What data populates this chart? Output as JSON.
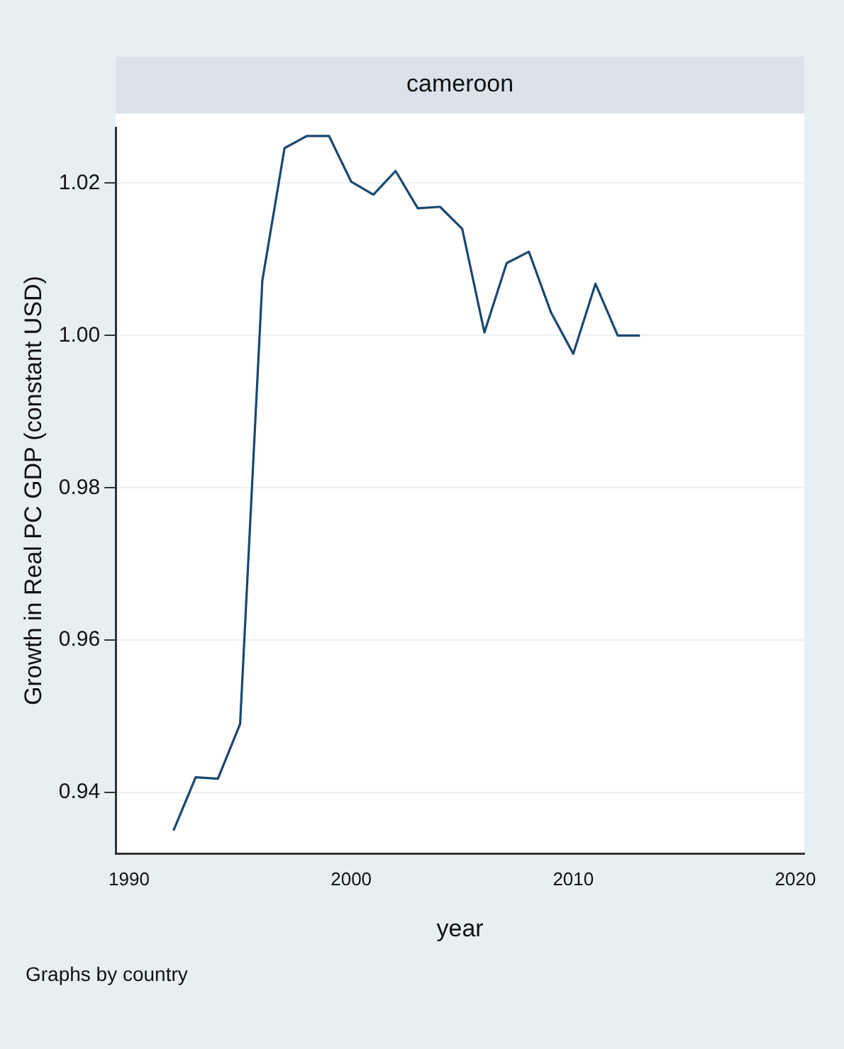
{
  "chart_data": {
    "type": "line",
    "title": "cameroon",
    "xlabel": "year",
    "ylabel": "Growth in Real PC GDP (constant USD)",
    "annotations": [
      "Graphs by country"
    ],
    "x": [
      1992,
      1993,
      1994,
      1995,
      1996,
      1997,
      1998,
      1999,
      2000,
      2001,
      2002,
      2003,
      2004,
      2005,
      2006,
      2007,
      2008,
      2009,
      2010,
      2011,
      2012,
      2013
    ],
    "series": [
      {
        "color": "#1a476f",
        "values": [
          0.935,
          0.942,
          0.9418,
          0.949,
          1.0072,
          1.0246,
          1.0262,
          1.0262,
          1.0202,
          1.0185,
          1.0216,
          1.0167,
          1.0169,
          1.014,
          1.0004,
          1.0095,
          1.011,
          1.003,
          0.9976,
          1.0068,
          1.0,
          1.0
        ]
      }
    ],
    "xlim": [
      1989.4,
      2020.4
    ],
    "xticks": [
      1990,
      2000,
      2010,
      2020
    ],
    "ylim": [
      0.932,
      1.0273
    ],
    "yticks": [
      {
        "value": 0.94,
        "label": "0.94"
      },
      {
        "value": 0.96,
        "label": "0.96"
      },
      {
        "value": 0.98,
        "label": "0.98"
      },
      {
        "value": 1.0,
        "label": "1.00"
      },
      {
        "value": 1.02,
        "label": "1.02"
      }
    ],
    "grid": "y",
    "legend": false,
    "marker": "none",
    "line_style": "solid"
  }
}
